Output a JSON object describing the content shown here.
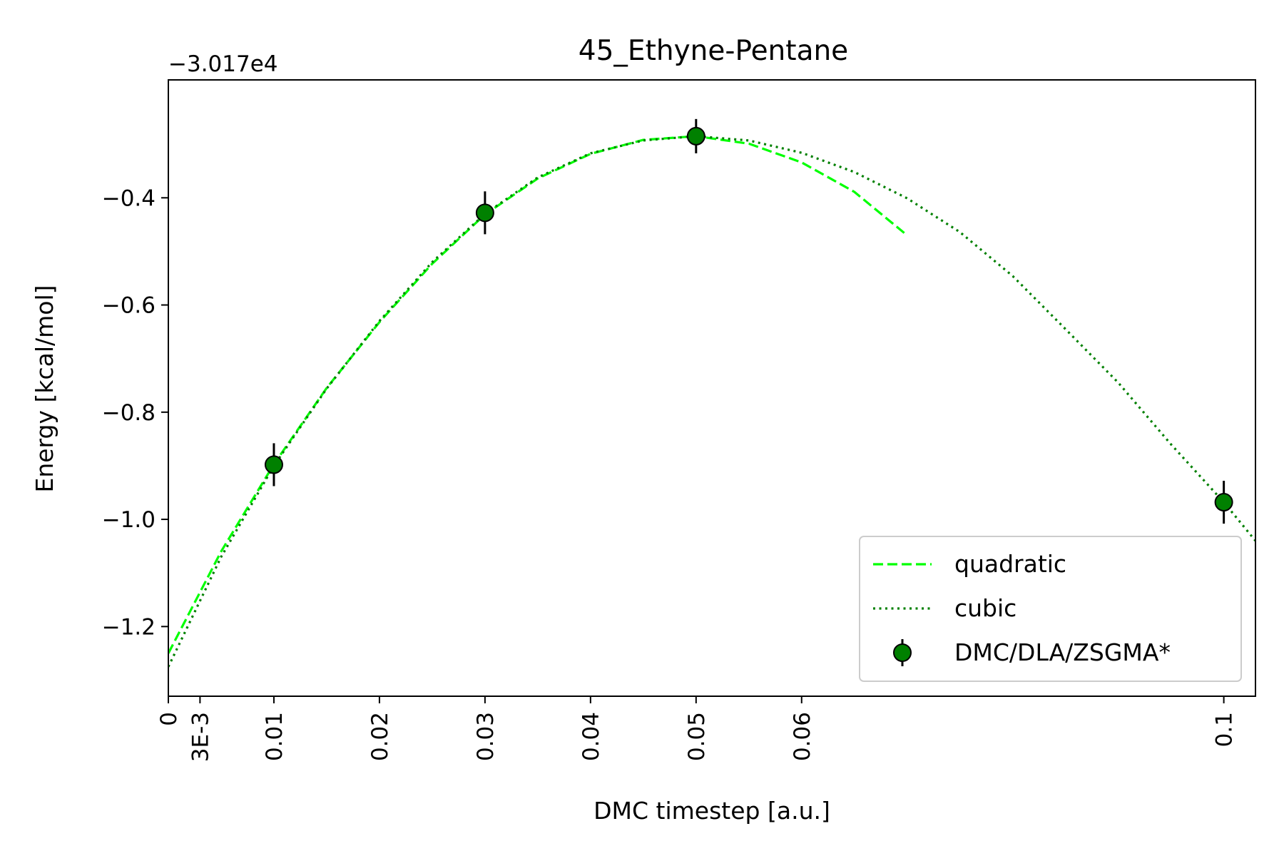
{
  "chart_data": {
    "type": "line",
    "title": "45_Ethyne-Pentane",
    "xlabel": "DMC timestep [a.u.]",
    "ylabel": "Energy [kcal/mol]",
    "offset_text": "−3.017e4",
    "xlim": [
      0,
      0.103
    ],
    "ylim": [
      -1.33,
      -0.18
    ],
    "x_ticks": [
      {
        "value": 0,
        "label": "0"
      },
      {
        "value": 0.003,
        "label": "3E-3"
      },
      {
        "value": 0.01,
        "label": "0.01"
      },
      {
        "value": 0.02,
        "label": "0.02"
      },
      {
        "value": 0.03,
        "label": "0.03"
      },
      {
        "value": 0.04,
        "label": "0.04"
      },
      {
        "value": 0.05,
        "label": "0.05"
      },
      {
        "value": 0.06,
        "label": "0.06"
      },
      {
        "value": 0.1,
        "label": "0.1"
      }
    ],
    "y_ticks": [
      {
        "value": -0.4,
        "label": "−0.4"
      },
      {
        "value": -0.6,
        "label": "−0.6"
      },
      {
        "value": -0.8,
        "label": "−0.8"
      },
      {
        "value": -1.0,
        "label": "−1.0"
      },
      {
        "value": -1.2,
        "label": "−1.2"
      }
    ],
    "series": [
      {
        "name": "quadratic",
        "style": "dashed",
        "color": "#00ff00",
        "x": [
          0,
          0.005,
          0.01,
          0.015,
          0.02,
          0.025,
          0.03,
          0.035,
          0.04,
          0.045,
          0.05,
          0.055,
          0.06,
          0.065,
          0.07
        ],
        "y": [
          -1.25,
          -1.06,
          -0.897,
          -0.755,
          -0.632,
          -0.523,
          -0.431,
          -0.364,
          -0.318,
          -0.292,
          -0.285,
          -0.299,
          -0.334,
          -0.389,
          -0.47
        ]
      },
      {
        "name": "cubic",
        "style": "dotted",
        "color": "#008000",
        "x": [
          0,
          0.005,
          0.01,
          0.015,
          0.02,
          0.025,
          0.03,
          0.035,
          0.04,
          0.045,
          0.05,
          0.055,
          0.06,
          0.065,
          0.07,
          0.075,
          0.08,
          0.085,
          0.09,
          0.095,
          0.1,
          0.103
        ],
        "y": [
          -1.275,
          -1.07,
          -0.9,
          -0.756,
          -0.63,
          -0.52,
          -0.43,
          -0.362,
          -0.317,
          -0.293,
          -0.285,
          -0.293,
          -0.316,
          -0.352,
          -0.401,
          -0.464,
          -0.546,
          -0.645,
          -0.745,
          -0.86,
          -0.968,
          -1.04
        ]
      }
    ],
    "points": {
      "name": "DMC/DLA/ZSGMA*",
      "color": "#008000",
      "x": [
        0.01,
        0.03,
        0.05,
        0.1
      ],
      "y": [
        -0.898,
        -0.428,
        -0.285,
        -0.968
      ],
      "yerr": [
        0.04,
        0.04,
        0.032,
        0.04
      ]
    },
    "legend": {
      "position": "lower-right",
      "entries": [
        "quadratic",
        "cubic",
        "DMC/DLA/ZSGMA*"
      ]
    },
    "grid": false
  }
}
